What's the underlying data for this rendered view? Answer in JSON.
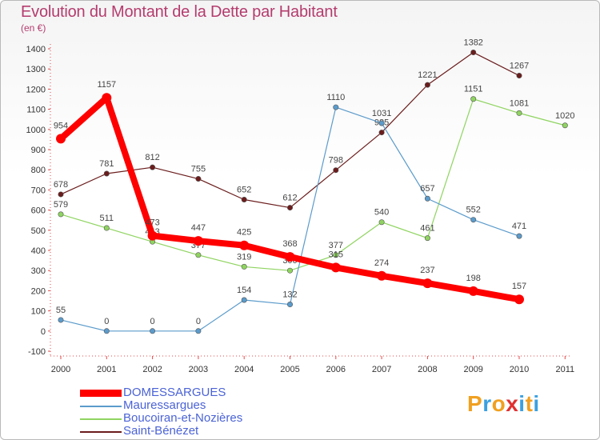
{
  "title": "Evolution du Montant de la Dette par Habitant",
  "unit": "(en €)",
  "logo": {
    "text": "Proxiti",
    "letter_colors": [
      "#f0a020",
      "#3aa0e0",
      "#f0a020",
      "#e03030",
      "#3aa0e0",
      "#f0a020",
      "#3aa0e0"
    ]
  },
  "chart_data": {
    "type": "line",
    "title": "Evolution du Montant de la Dette par Habitant",
    "ylabel": "(en €)",
    "xlabel": "",
    "x": [
      "2000",
      "2001",
      "2002",
      "2003",
      "2004",
      "2005",
      "2006",
      "2007",
      "2008",
      "2009",
      "2010",
      "2011"
    ],
    "yticks": [
      -100,
      0,
      100,
      200,
      300,
      400,
      500,
      600,
      700,
      800,
      900,
      1000,
      1100,
      1200,
      1300,
      1400
    ],
    "ylim": [
      -100,
      1400
    ],
    "grid": false,
    "legend_position": "bottom-left",
    "series": [
      {
        "name": "Saint-Bénézet",
        "color": "#6b1c1c",
        "values": [
          678,
          781,
          812,
          755,
          652,
          612,
          798,
          985,
          1221,
          1382,
          1267,
          null
        ],
        "labels": [
          "678",
          "781",
          "812",
          "755",
          "652",
          "612",
          "798",
          "985",
          "1221",
          "1382",
          "1267",
          ""
        ]
      },
      {
        "name": "Boucoiran-et-Nozières",
        "color": "#8fd460",
        "values": [
          579,
          511,
          443,
          377,
          319,
          300,
          377,
          540,
          461,
          1151,
          1081,
          1020
        ],
        "labels": [
          "579",
          "511",
          "443",
          "377",
          "319",
          "300",
          "377",
          "540",
          "461",
          "1151",
          "1081",
          "1020"
        ]
      },
      {
        "name": "Mauressargues",
        "color": "#5b9bcb",
        "values": [
          55,
          0,
          0,
          0,
          154,
          132,
          1110,
          1031,
          657,
          552,
          471,
          null
        ],
        "labels": [
          "55",
          "0",
          "0",
          "0",
          "154",
          "132",
          "1110",
          "1031",
          "657",
          "552",
          "471",
          ""
        ]
      },
      {
        "name": "DOMESSARGUES",
        "color": "#ff0000",
        "values": [
          954,
          1157,
          473,
          447,
          425,
          368,
          315,
          274,
          237,
          198,
          157,
          null
        ],
        "labels": [
          "954",
          "1157",
          "473",
          "447",
          "425",
          "368",
          "315",
          "274",
          "237",
          "198",
          "157",
          ""
        ]
      }
    ],
    "legend": [
      "DOMESSARGUES",
      "Mauressargues",
      "Boucoiran-et-Nozières",
      "Saint-Bénézet"
    ]
  }
}
